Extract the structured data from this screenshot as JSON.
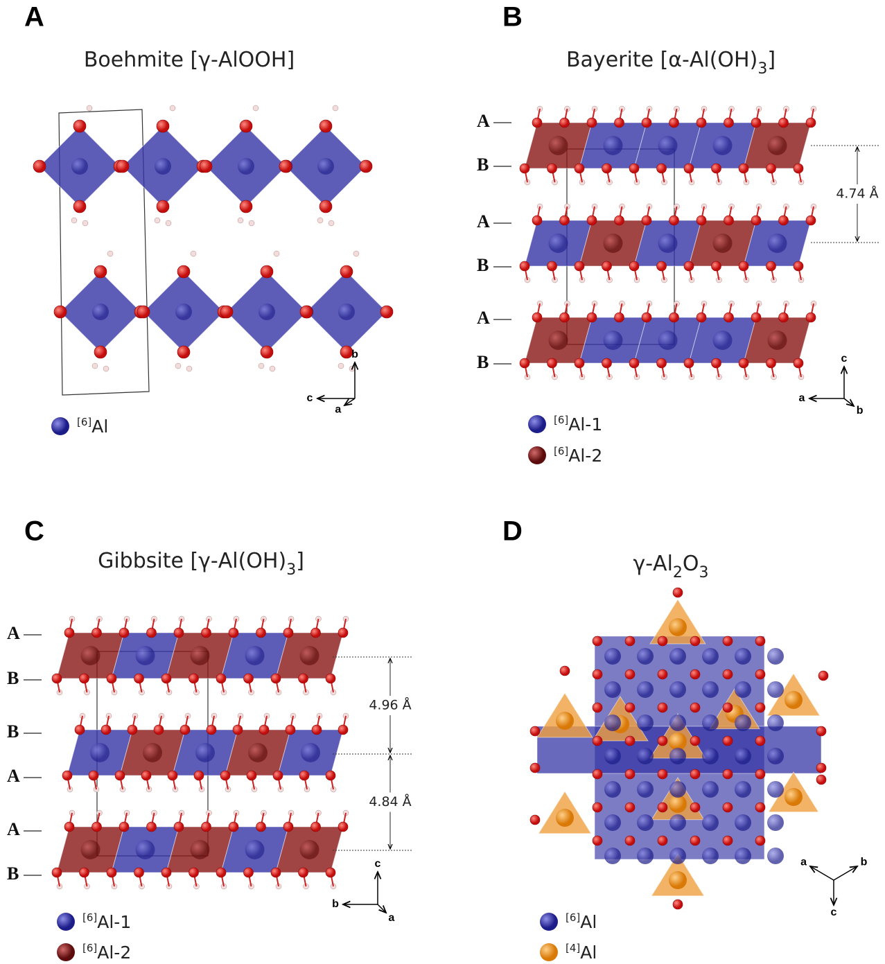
{
  "panels": [
    {
      "letter": "A",
      "title": [
        "Boehmite [γ-AlOOH]"
      ],
      "layers": [],
      "distances": [],
      "axes": {
        "first": "b",
        "second": "c",
        "third": "a"
      },
      "legend": [
        {
          "sup": "[6]",
          "label": "Al"
        }
      ]
    },
    {
      "letter": "B",
      "title": [
        "Bayerite [α-Al(OH)",
        "3",
        "]"
      ],
      "layers": [
        "A",
        "B",
        "A",
        "B",
        "A",
        "B"
      ],
      "distances": [
        "4.74 Å"
      ],
      "axes": {
        "first": "c",
        "second": "a",
        "third": "b"
      },
      "legend": [
        {
          "sup": "[6]",
          "label": "Al-1"
        },
        {
          "sup": "[6]",
          "label": "Al-2"
        }
      ]
    },
    {
      "letter": "C",
      "title": [
        "Gibbsite [γ-Al(OH)",
        "3",
        "]"
      ],
      "layers": [
        "A",
        "B",
        "B",
        "A",
        "A",
        "B"
      ],
      "distances": [
        "4.96 Å",
        "4.84 Å"
      ],
      "axes": {
        "first": "c",
        "second": "b",
        "third": "a"
      },
      "legend": [
        {
          "sup": "[6]",
          "label": "Al-1"
        },
        {
          "sup": "[6]",
          "label": "Al-2"
        }
      ]
    },
    {
      "letter": "D",
      "title": [
        "γ-Al",
        "2",
        "O",
        "3"
      ],
      "layers": [],
      "distances": [],
      "axes": {
        "first": "a",
        "second": "b",
        "third": "c"
      },
      "legend": [
        {
          "sup": "[6]",
          "label": "Al"
        },
        {
          "sup": "[4]",
          "label": "Al"
        }
      ]
    }
  ]
}
